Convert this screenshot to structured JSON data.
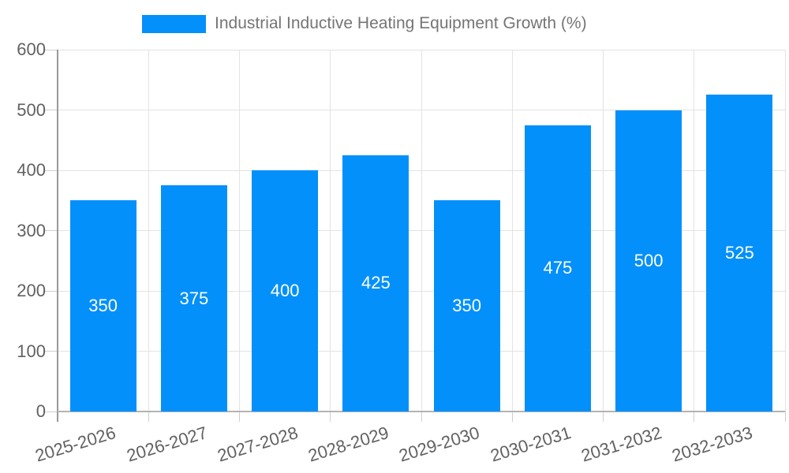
{
  "legend": {
    "label": "Industrial Inductive Heating Equipment Growth (%)"
  },
  "chart_data": {
    "type": "bar",
    "title": "",
    "categories": [
      "2025-2026",
      "2026-2027",
      "2027-2028",
      "2028-2029",
      "2029-2030",
      "2030-2031",
      "2031-2032",
      "2032-2033"
    ],
    "series": [
      {
        "name": "Industrial Inductive Heating Equipment Growth (%)",
        "values": [
          350,
          375,
          400,
          425,
          350,
          475,
          500,
          525
        ]
      }
    ],
    "xlabel": "",
    "ylabel": "",
    "ylim": [
      0,
      600
    ],
    "yticks": [
      0,
      100,
      200,
      300,
      400,
      500,
      600
    ],
    "grid": true,
    "legend_position": "top",
    "value_label_position": "inside-center"
  },
  "colors": {
    "bar": "#0390fb",
    "grid": "#e3e3e3",
    "tick": "#cfcfcf",
    "y_axis_line": "#999999",
    "x_axis_line": "#b3b3b3",
    "axis_label": "#616161",
    "legend_text": "#757575",
    "value_label": "#ffffff",
    "background": "#ffffff"
  }
}
